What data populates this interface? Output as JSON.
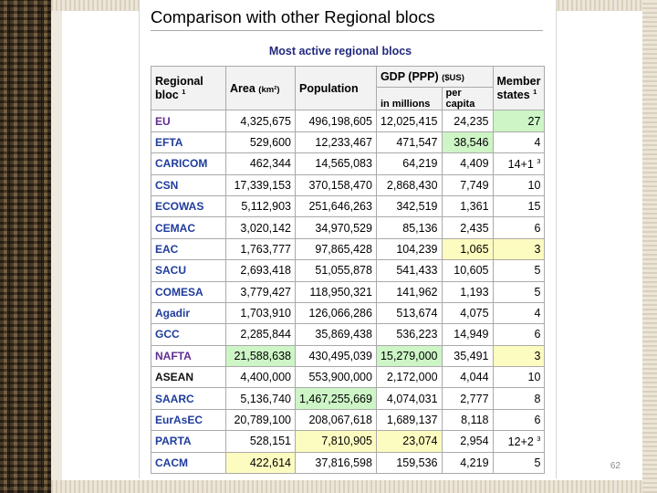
{
  "slide": {
    "page_number": "62"
  },
  "heading": "Comparison with other Regional blocs",
  "table": {
    "caption": "Most active regional blocs",
    "headers": {
      "bloc": "Regional bloc",
      "bloc_note": "1",
      "area": "Area",
      "area_unit": "(km²)",
      "population": "Population",
      "gdp": "GDP (PPP)",
      "gdp_unit": "($US)",
      "gdp_millions": "in millions",
      "gdp_per_capita": "per capita",
      "members": "Member states",
      "members_note": "1"
    },
    "rows": [
      {
        "bloc": "EU",
        "area": "4,325,675",
        "population": "496,198,605",
        "gdp": "12,025,415",
        "per_capita": "24,235",
        "members": "27",
        "members_note": ""
      },
      {
        "bloc": "EFTA",
        "area": "529,600",
        "population": "12,233,467",
        "gdp": "471,547",
        "per_capita": "38,546",
        "members": "4",
        "members_note": ""
      },
      {
        "bloc": "CARICOM",
        "area": "462,344",
        "population": "14,565,083",
        "gdp": "64,219",
        "per_capita": "4,409",
        "members": "14+1",
        "members_note": "3"
      },
      {
        "bloc": "CSN",
        "area": "17,339,153",
        "population": "370,158,470",
        "gdp": "2,868,430",
        "per_capita": "7,749",
        "members": "10",
        "members_note": ""
      },
      {
        "bloc": "ECOWAS",
        "area": "5,112,903",
        "population": "251,646,263",
        "gdp": "342,519",
        "per_capita": "1,361",
        "members": "15",
        "members_note": ""
      },
      {
        "bloc": "CEMAC",
        "area": "3,020,142",
        "population": "34,970,529",
        "gdp": "85,136",
        "per_capita": "2,435",
        "members": "6",
        "members_note": ""
      },
      {
        "bloc": "EAC",
        "area": "1,763,777",
        "population": "97,865,428",
        "gdp": "104,239",
        "per_capita": "1,065",
        "members": "3",
        "members_note": ""
      },
      {
        "bloc": "SACU",
        "area": "2,693,418",
        "population": "51,055,878",
        "gdp": "541,433",
        "per_capita": "10,605",
        "members": "5",
        "members_note": ""
      },
      {
        "bloc": "COMESA",
        "area": "3,779,427",
        "population": "118,950,321",
        "gdp": "141,962",
        "per_capita": "1,193",
        "members": "5",
        "members_note": ""
      },
      {
        "bloc": "Agadir",
        "area": "1,703,910",
        "population": "126,066,286",
        "gdp": "513,674",
        "per_capita": "4,075",
        "members": "4",
        "members_note": ""
      },
      {
        "bloc": "GCC",
        "area": "2,285,844",
        "population": "35,869,438",
        "gdp": "536,223",
        "per_capita": "14,949",
        "members": "6",
        "members_note": ""
      },
      {
        "bloc": "NAFTA",
        "area": "21,588,638",
        "population": "430,495,039",
        "gdp": "15,279,000",
        "per_capita": "35,491",
        "members": "3",
        "members_note": ""
      },
      {
        "bloc": "ASEAN",
        "area": "4,400,000",
        "population": "553,900,000",
        "gdp": "2,172,000",
        "per_capita": "4,044",
        "members": "10",
        "members_note": ""
      },
      {
        "bloc": "SAARC",
        "area": "5,136,740",
        "population": "1,467,255,669",
        "gdp": "4,074,031",
        "per_capita": "2,777",
        "members": "8",
        "members_note": ""
      },
      {
        "bloc": "EurAsEC",
        "area": "20,789,100",
        "population": "208,067,618",
        "gdp": "1,689,137",
        "per_capita": "8,118",
        "members": "6",
        "members_note": ""
      },
      {
        "bloc": "PARTA",
        "area": "528,151",
        "population": "7,810,905",
        "gdp": "23,074",
        "per_capita": "2,954",
        "members": "12+2",
        "members_note": "3"
      },
      {
        "bloc": "CACM",
        "area": "422,614",
        "population": "37,816,598",
        "gdp": "159,536",
        "per_capita": "4,219",
        "members": "5",
        "members_note": ""
      }
    ],
    "highlights": {
      "green": "#cdf5c6",
      "yellow": "#fdfcc0",
      "cells": [
        {
          "bloc": "EU",
          "column": "members",
          "color": "green"
        },
        {
          "bloc": "EFTA",
          "column": "per_capita",
          "color": "green"
        },
        {
          "bloc": "EAC",
          "column": "per_capita",
          "color": "yellow"
        },
        {
          "bloc": "EAC",
          "column": "members",
          "color": "yellow"
        },
        {
          "bloc": "NAFTA",
          "column": "area",
          "color": "green"
        },
        {
          "bloc": "NAFTA",
          "column": "gdp",
          "color": "green"
        },
        {
          "bloc": "NAFTA",
          "column": "members",
          "color": "yellow"
        },
        {
          "bloc": "SAARC",
          "column": "population",
          "color": "green"
        },
        {
          "bloc": "PARTA",
          "column": "population",
          "color": "yellow"
        },
        {
          "bloc": "PARTA",
          "column": "gdp",
          "color": "yellow"
        },
        {
          "bloc": "CACM",
          "column": "area",
          "color": "yellow"
        }
      ]
    },
    "name_colors": {
      "default": "#1f3c9c",
      "EU": "#5f2d8e",
      "NAFTA": "#5f2d8e",
      "ASEAN": "#111111"
    }
  }
}
